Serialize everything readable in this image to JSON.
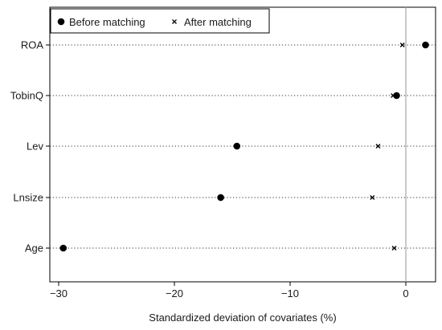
{
  "chart_data": {
    "type": "scatter",
    "title": "",
    "xlabel": "Standardized deviation of covariates (%)",
    "ylabel": "",
    "xlim": [
      -31,
      2.5
    ],
    "x_ticks": [
      -30,
      -20,
      -10,
      0
    ],
    "x_tick_labels": [
      "−30",
      "−20",
      "−10",
      "0"
    ],
    "categories": [
      "ROA",
      "TobinQ",
      "Lev",
      "Lnsize",
      "Age"
    ],
    "reference_line_x": 0,
    "grid": "dotted horizontal lines per category",
    "legend_position": "top-left",
    "series": [
      {
        "name": "Before matching",
        "marker": "filled-circle",
        "values": [
          1.7,
          -0.8,
          -14.6,
          -16.0,
          -29.6
        ]
      },
      {
        "name": "After matching",
        "marker": "x",
        "values": [
          -0.3,
          -1.1,
          -2.4,
          -2.9,
          -1.0
        ]
      }
    ],
    "colors": {
      "marker": "#000000",
      "axis": "#000000",
      "reference_line": "#a6a6a6",
      "gridline": "#333333"
    }
  }
}
